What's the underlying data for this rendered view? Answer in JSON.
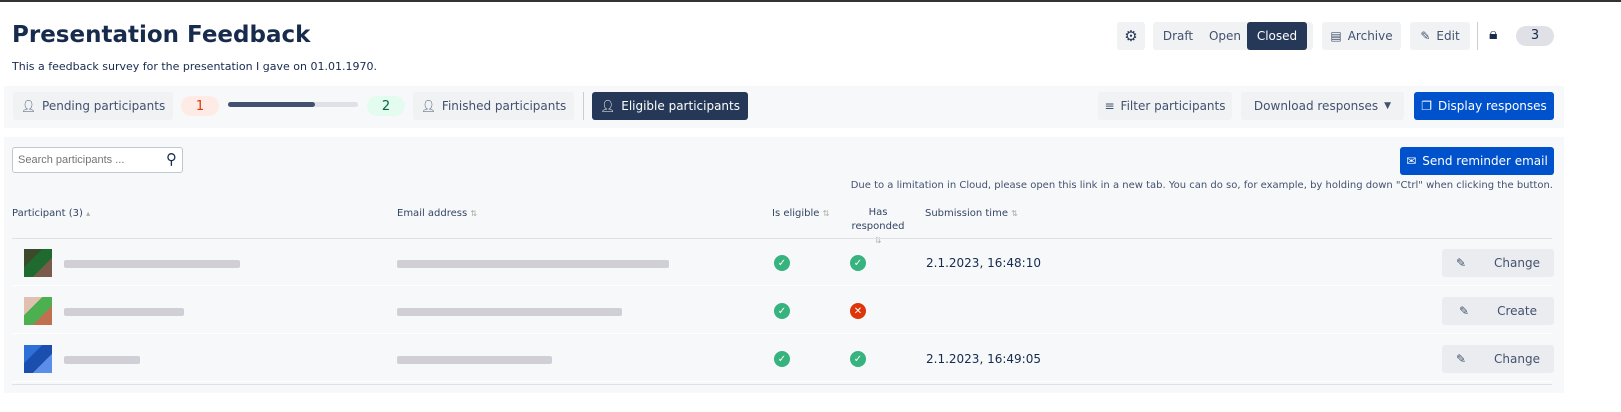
{
  "header": {
    "title": "Presentation Feedback",
    "subtitle": "This a feedback survey for the presentation I gave on 01.01.1970.",
    "status_options": [
      "Draft",
      "Open",
      "Closed"
    ],
    "status_selected": "Closed",
    "archive": "Archive",
    "edit": "Edit",
    "count": "3"
  },
  "toolbar": {
    "pending": "Pending participants",
    "pending_count": "1",
    "finished_count": "2",
    "progress": 0.67,
    "finished": "Finished participants",
    "eligible": "Eligible participants",
    "filter": "Filter participants",
    "download": "Download responses",
    "display": "Display responses"
  },
  "table": {
    "search_placeholder": "Search participants ...",
    "reminder": "Send reminder email",
    "note": "Due to a limitation in Cloud, please open this link in a new tab. You can do so, for example, by holding down \"Ctrl\" when clicking the button.",
    "headers": [
      "Participant (3)",
      "Email address",
      "Is eligible",
      "Has responded",
      "Submission time"
    ],
    "rows": [
      {
        "eligible": true,
        "responded": true,
        "time": "2.1.2023, 16:48:10",
        "action": "Change"
      },
      {
        "eligible": true,
        "responded": false,
        "time": "",
        "action": "Create"
      },
      {
        "eligible": true,
        "responded": true,
        "time": "2.1.2023, 16:49:05",
        "action": "Change"
      }
    ]
  },
  "colors": {
    "primary": "#0052cc",
    "dark": "#253858",
    "success": "#36b37e",
    "danger": "#de350b"
  }
}
